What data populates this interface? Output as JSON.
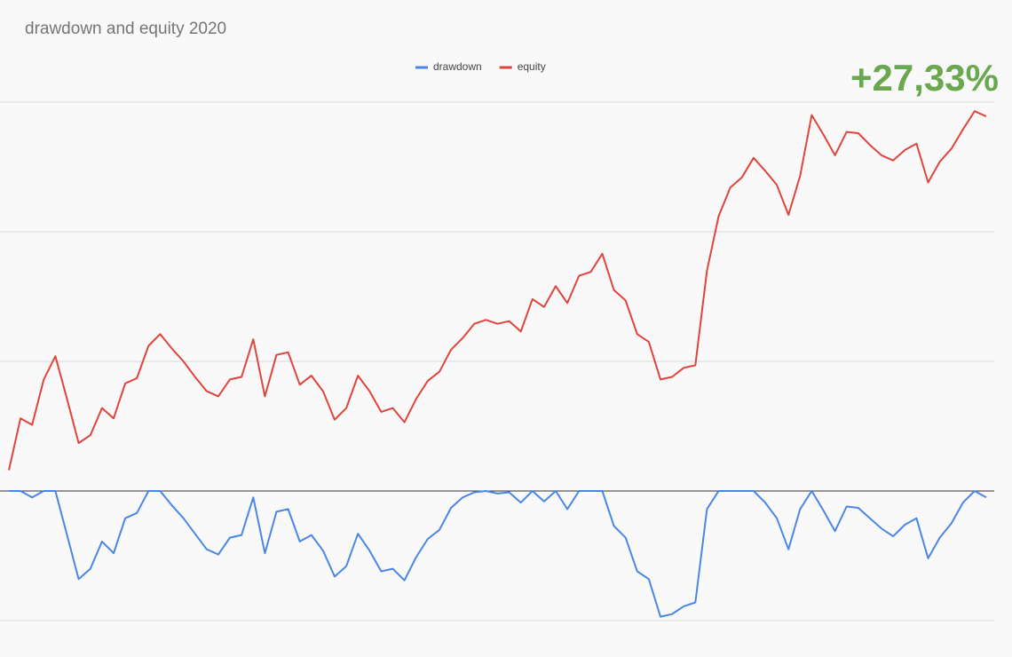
{
  "chart_data": {
    "type": "line",
    "title": "drawdown and equity 2020",
    "annotation": "+27,33%",
    "categories": [
      null,
      null,
      null,
      null,
      null,
      null,
      null,
      null,
      null,
      null,
      null,
      null,
      null,
      null,
      null,
      null,
      null,
      null,
      null,
      null,
      null,
      null,
      null,
      null,
      null,
      null,
      null,
      null,
      null,
      null,
      null,
      null,
      null,
      null,
      null,
      null,
      null,
      null,
      null,
      null,
      null,
      null,
      null,
      null,
      null,
      null,
      null,
      null,
      null,
      null,
      null,
      null,
      null,
      null,
      null,
      null,
      null,
      null,
      null,
      null,
      null,
      null,
      null,
      null,
      null,
      null,
      null,
      null,
      null,
      null,
      null,
      null,
      null,
      null,
      null,
      null,
      null,
      null,
      null,
      null,
      null,
      null,
      null,
      null,
      null
    ],
    "series": [
      {
        "name": "drawdown",
        "color": "#4a86e8",
        "values": [
          0,
          0,
          -0.5,
          0,
          0,
          -3.4,
          -6.8,
          -6.0,
          -3.9,
          -4.8,
          -2.1,
          -1.7,
          0,
          0,
          -1.1,
          -2.1,
          -3.3,
          -4.5,
          -4.9,
          -3.6,
          -3.4,
          -0.5,
          -4.8,
          -1.6,
          -1.4,
          -3.9,
          -3.4,
          -4.6,
          -6.6,
          -5.8,
          -3.3,
          -4.6,
          -6.2,
          -6.0,
          -6.9,
          -5.1,
          -3.7,
          -3.0,
          -1.3,
          -0.5,
          -0.1,
          0,
          -0.2,
          -0.1,
          -0.9,
          0,
          -0.8,
          0,
          -1.4,
          0,
          0,
          0,
          -2.7,
          -3.6,
          -6.2,
          -6.8,
          -9.7,
          -9.5,
          -8.9,
          -8.6,
          -1.4,
          0,
          0,
          0,
          0,
          -0.9,
          -2.1,
          -4.5,
          -1.4,
          0,
          -1.5,
          -3.1,
          -1.2,
          -1.3,
          -2.1,
          -2.9,
          -3.5,
          -2.6,
          -2.1,
          -5.2,
          -3.6,
          -2.5,
          -0.9,
          0,
          -0.5
        ]
      },
      {
        "name": "equity",
        "color": "#e0443c",
        "values": [
          1.6,
          5.6,
          5.1,
          8.6,
          10.4,
          7.1,
          3.7,
          4.3,
          6.4,
          5.6,
          8.3,
          8.7,
          11.2,
          12.1,
          11.0,
          10.0,
          8.8,
          7.7,
          7.3,
          8.6,
          8.8,
          11.7,
          7.3,
          10.5,
          10.7,
          8.2,
          8.9,
          7.7,
          5.5,
          6.4,
          8.9,
          7.7,
          6.1,
          6.4,
          5.3,
          7.1,
          8.5,
          9.2,
          10.9,
          11.8,
          12.9,
          13.2,
          12.9,
          13.1,
          12.3,
          14.8,
          14.2,
          15.8,
          14.5,
          16.6,
          16.9,
          18.3,
          15.5,
          14.7,
          12.1,
          11.5,
          8.6,
          8.8,
          9.5,
          9.7,
          17.0,
          21.2,
          23.4,
          24.2,
          25.7,
          24.7,
          23.6,
          21.3,
          24.3,
          29.0,
          27.5,
          25.9,
          27.7,
          27.6,
          26.7,
          25.9,
          25.5,
          26.3,
          26.8,
          23.8,
          25.4,
          26.4,
          27.9,
          29.3,
          28.9
        ]
      }
    ],
    "ylim": [
      -11,
      31
    ],
    "yticks": [
      -10,
      0,
      10,
      20,
      30
    ],
    "grid": true,
    "legend": "top"
  }
}
